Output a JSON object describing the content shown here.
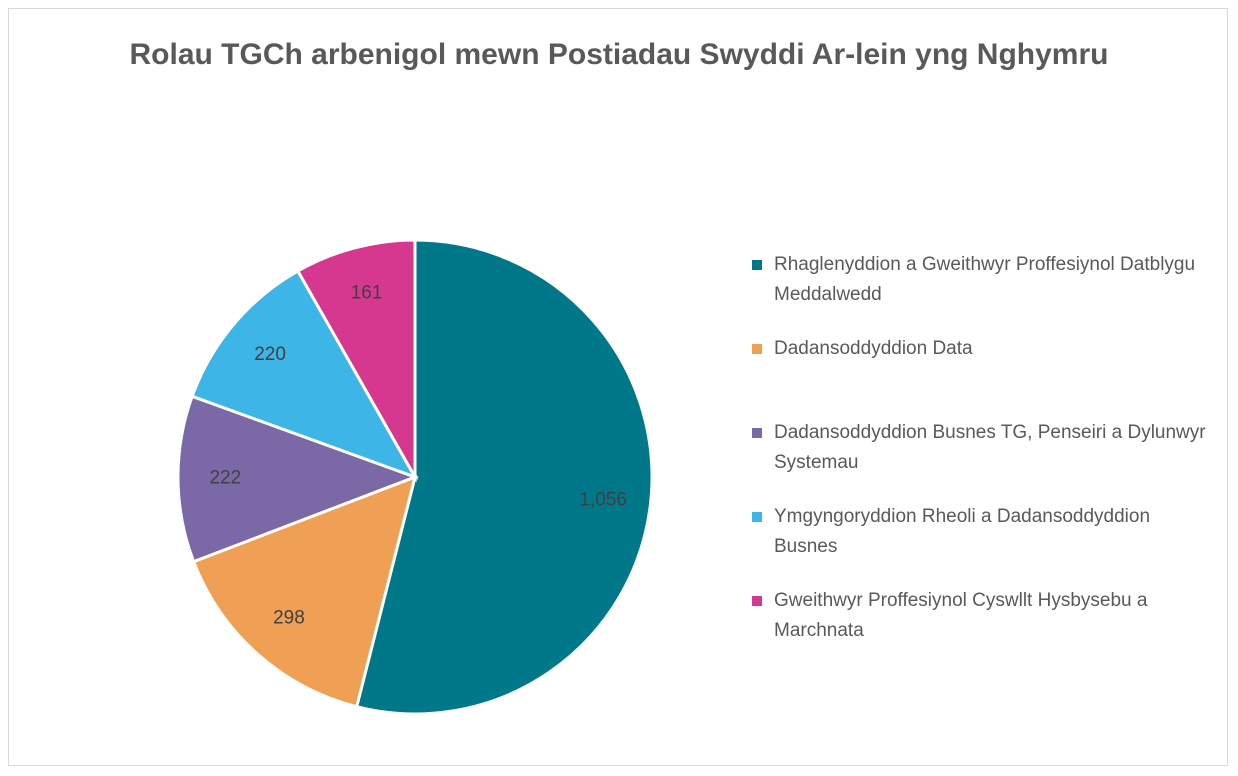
{
  "chart_data": {
    "type": "pie",
    "title": "Rolau TGCh arbenigol mewn Postiadau Swyddi Ar-lein yng Nghymru",
    "categories": [
      "Rhaglenyddion a Gweithwyr Proffesiynol Datblygu Meddalwedd",
      "Dadansoddyddion Data",
      "Dadansoddyddion Busnes TG, Penseiri a Dylunwyr Systemau",
      "Ymgyngoryddion Rheoli a Dadansoddyddion Busnes",
      "Gweithwyr Proffesiynol Cyswllt Hysbysebu a Marchnata"
    ],
    "values": [
      1056,
      298,
      222,
      220,
      161
    ],
    "value_labels": [
      "1,056",
      "298",
      "222",
      "220",
      "161"
    ],
    "colors": [
      "#00788a",
      "#f0a055",
      "#7b68a6",
      "#3db5e6",
      "#d6388f"
    ],
    "legend": "right"
  }
}
